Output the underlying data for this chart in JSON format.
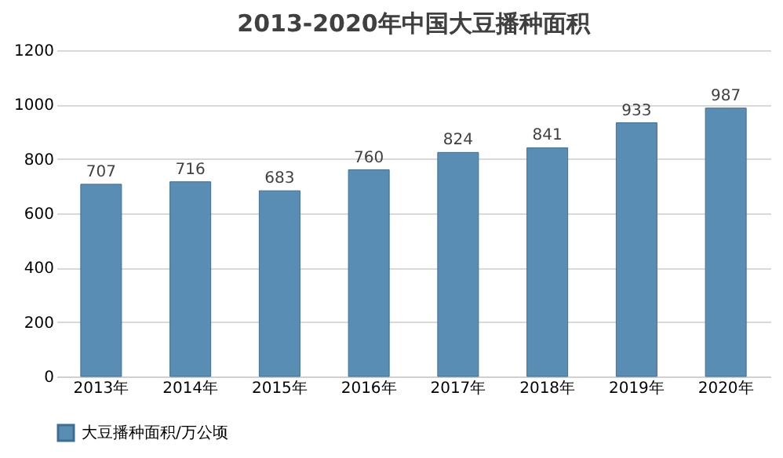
{
  "chart_data": {
    "type": "bar",
    "title": "2013-2020年中国大豆播种面积",
    "categories": [
      "2013年",
      "2014年",
      "2015年",
      "2016年",
      "2017年",
      "2018年",
      "2019年",
      "2020年"
    ],
    "series": [
      {
        "name": "大豆播种面积/万公顷",
        "color": "#5a8db4",
        "values": [
          707,
          716,
          683,
          760,
          824,
          841,
          933,
          987
        ]
      }
    ],
    "ylim": [
      0,
      1200
    ],
    "yticks": [
      0,
      200,
      400,
      600,
      800,
      1000,
      1200
    ],
    "grid": "y",
    "legend": "bottom",
    "data_labels": true
  }
}
